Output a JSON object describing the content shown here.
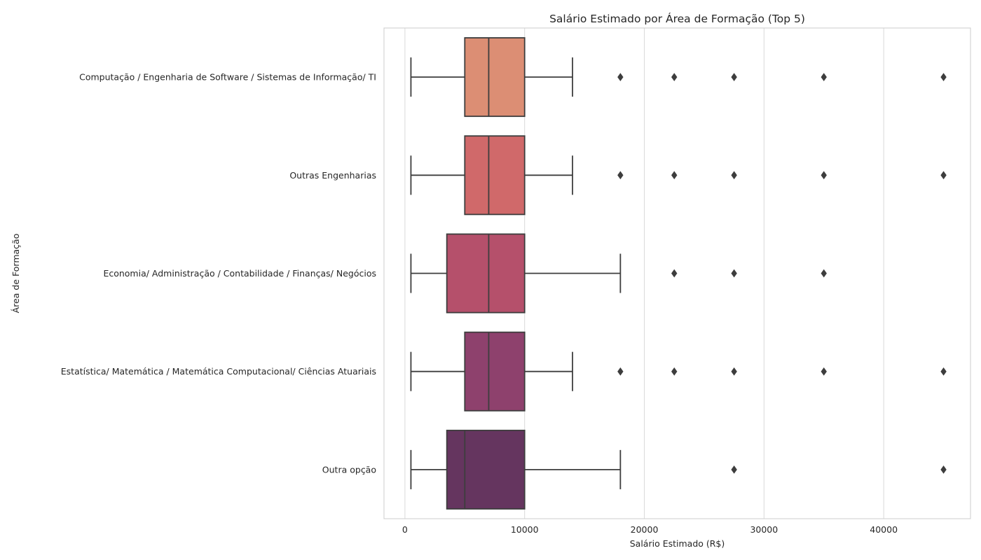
{
  "chart_data": {
    "type": "boxplot",
    "orientation": "horizontal",
    "title": "Salário Estimado por Área de Formação (Top 5)",
    "xlabel": "Salário Estimado (R$)",
    "ylabel": "Área de Formação",
    "xlim": [
      -1750,
      47250
    ],
    "xticks": [
      0,
      10000,
      20000,
      30000,
      40000
    ],
    "xtick_labels": [
      "0",
      "10000",
      "20000",
      "30000",
      "40000"
    ],
    "grid": "vertical",
    "categories": [
      "Computação / Engenharia de Software / Sistemas de Informação/ TI",
      "Outras Engenharias",
      "Economia/ Administração / Contabilidade / Finanças/ Negócios",
      "Estatística/ Matemática / Matemática Computacional/ Ciências Atuariais",
      "Outra opção"
    ],
    "boxes": [
      {
        "whislo": 500,
        "q1": 5000,
        "median": 7000,
        "q3": 10000,
        "whishi": 14000,
        "fliers": [
          18000,
          22500,
          27500,
          35000,
          45000
        ],
        "color": "#dc8e74"
      },
      {
        "whislo": 500,
        "q1": 5000,
        "median": 7000,
        "q3": 10000,
        "whishi": 14000,
        "fliers": [
          18000,
          22500,
          27500,
          35000,
          45000
        ],
        "color": "#d0696a"
      },
      {
        "whislo": 500,
        "q1": 3500,
        "median": 7000,
        "q3": 10000,
        "whishi": 18000,
        "fliers": [
          22500,
          27500,
          35000
        ],
        "color": "#b5506b"
      },
      {
        "whislo": 500,
        "q1": 5000,
        "median": 7000,
        "q3": 10000,
        "whishi": 14000,
        "fliers": [
          18000,
          22500,
          27500,
          35000,
          45000
        ],
        "color": "#8e416d"
      },
      {
        "whislo": 500,
        "q1": 3500,
        "median": 5000,
        "q3": 10000,
        "whishi": 18000,
        "fliers": [
          27500,
          45000
        ],
        "color": "#65355f"
      }
    ]
  }
}
